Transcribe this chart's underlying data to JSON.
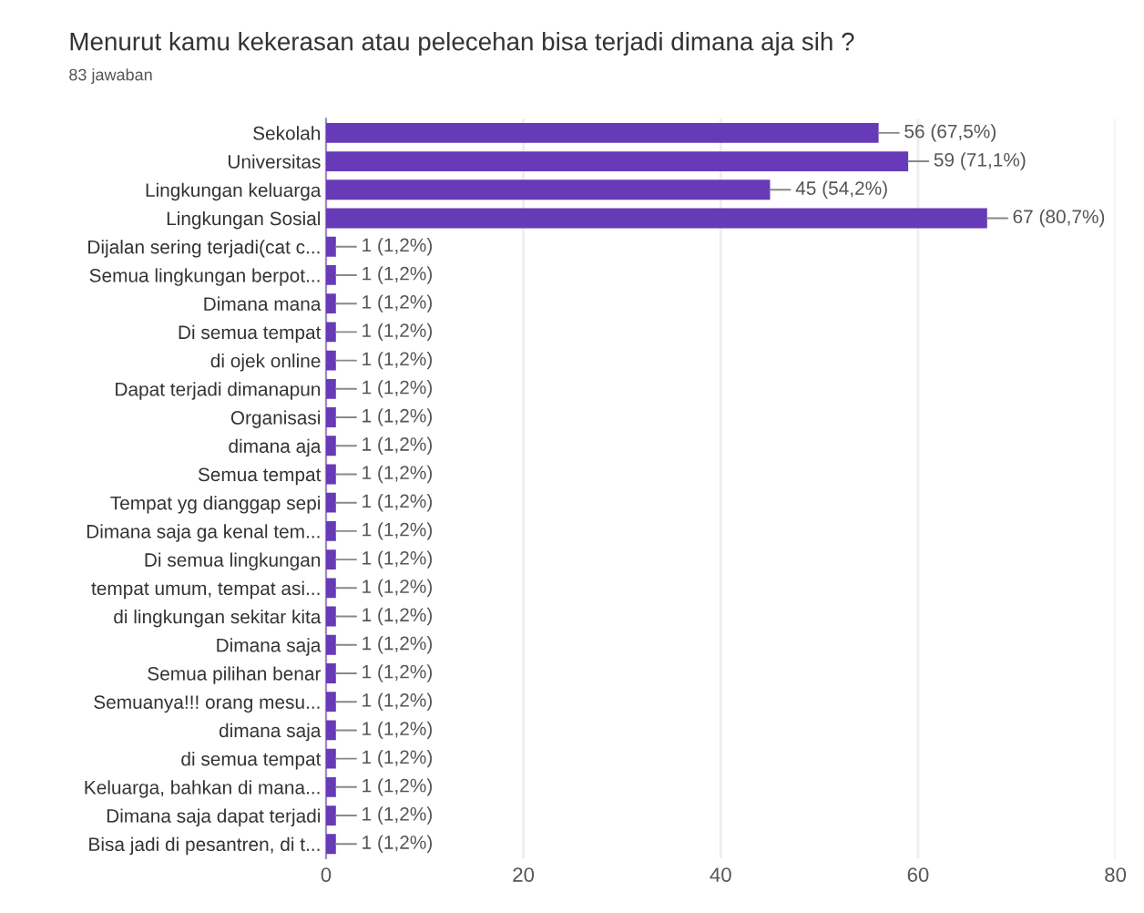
{
  "chart_data": {
    "type": "bar",
    "orientation": "horizontal",
    "title": "Menurut kamu kekerasan atau pelecehan bisa terjadi dimana aja sih ?",
    "subtitle": "83 jawaban",
    "categories": [
      "Sekolah",
      "Universitas",
      "Lingkungan keluarga",
      "Lingkungan Sosial",
      "Dijalan sering terjadi(cat c...",
      "Semua lingkungan berpot...",
      "Dimana mana",
      "Di semua tempat",
      "di ojek online",
      "Dapat terjadi dimanapun",
      "Organisasi",
      "dimana aja",
      "Semua tempat",
      "Tempat yg dianggap sepi",
      "Dimana saja ga kenal tem...",
      "Di semua lingkungan",
      "tempat umum, tempat asi...",
      "di lingkungan sekitar kita",
      "Dimana saja",
      "Semua pilihan benar",
      "Semuanya!!! orang mesu...",
      "dimana saja",
      "di semua tempat",
      "Keluarga, bahkan di mana...",
      "Dimana saja dapat terjadi",
      "Bisa jadi di pesantren, di t..."
    ],
    "values": [
      56,
      59,
      45,
      67,
      1,
      1,
      1,
      1,
      1,
      1,
      1,
      1,
      1,
      1,
      1,
      1,
      1,
      1,
      1,
      1,
      1,
      1,
      1,
      1,
      1,
      1
    ],
    "value_labels": [
      "56 (67,5%)",
      "59 (71,1%)",
      "45 (54,2%)",
      "67 (80,7%)",
      "1 (1,2%)",
      "1 (1,2%)",
      "1 (1,2%)",
      "1 (1,2%)",
      "1 (1,2%)",
      "1 (1,2%)",
      "1 (1,2%)",
      "1 (1,2%)",
      "1 (1,2%)",
      "1 (1,2%)",
      "1 (1,2%)",
      "1 (1,2%)",
      "1 (1,2%)",
      "1 (1,2%)",
      "1 (1,2%)",
      "1 (1,2%)",
      "1 (1,2%)",
      "1 (1,2%)",
      "1 (1,2%)",
      "1 (1,2%)",
      "1 (1,2%)",
      "1 (1,2%)"
    ],
    "color": "#673ab7",
    "xlim": [
      0,
      80
    ],
    "xticks": [
      0,
      20,
      40,
      60,
      80
    ],
    "grid": "x",
    "legend": false
  }
}
